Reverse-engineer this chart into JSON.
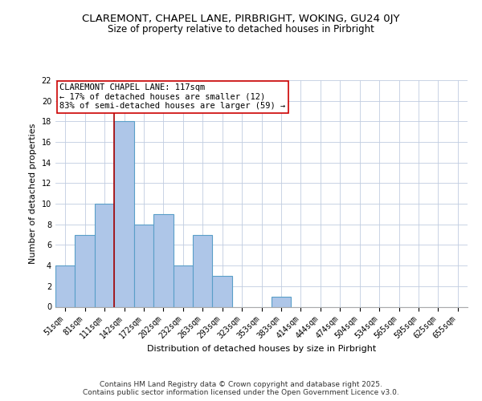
{
  "title1": "CLAREMONT, CHAPEL LANE, PIRBRIGHT, WOKING, GU24 0JY",
  "title2": "Size of property relative to detached houses in Pirbright",
  "xlabel": "Distribution of detached houses by size in Pirbright",
  "ylabel": "Number of detached properties",
  "categories": [
    "51sqm",
    "81sqm",
    "111sqm",
    "142sqm",
    "172sqm",
    "202sqm",
    "232sqm",
    "263sqm",
    "293sqm",
    "323sqm",
    "353sqm",
    "383sqm",
    "414sqm",
    "444sqm",
    "474sqm",
    "504sqm",
    "534sqm",
    "565sqm",
    "595sqm",
    "625sqm",
    "655sqm"
  ],
  "values": [
    4,
    7,
    10,
    18,
    8,
    9,
    4,
    7,
    3,
    0,
    0,
    1,
    0,
    0,
    0,
    0,
    0,
    0,
    0,
    0,
    0
  ],
  "bar_color": "#aec6e8",
  "bar_edge_color": "#5a9fc8",
  "vline_color": "#aa0000",
  "annotation_text": "CLAREMONT CHAPEL LANE: 117sqm\n← 17% of detached houses are smaller (12)\n83% of semi-detached houses are larger (59) →",
  "annotation_box_color": "#ffffff",
  "annotation_box_edge_color": "#cc0000",
  "ylim": [
    0,
    22
  ],
  "yticks": [
    0,
    2,
    4,
    6,
    8,
    10,
    12,
    14,
    16,
    18,
    20,
    22
  ],
  "background_color": "#ffffff",
  "grid_color": "#c0cce0",
  "footer_text": "Contains HM Land Registry data © Crown copyright and database right 2025.\nContains public sector information licensed under the Open Government Licence v3.0.",
  "title1_fontsize": 9.5,
  "title2_fontsize": 8.5,
  "axis_label_fontsize": 8,
  "tick_fontsize": 7,
  "annotation_fontsize": 7.5,
  "footer_fontsize": 6.5
}
